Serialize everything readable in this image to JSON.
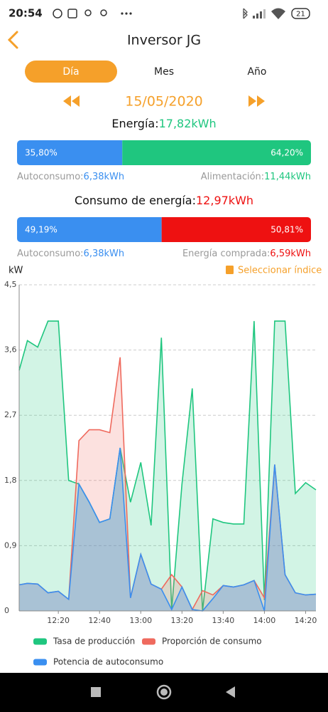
{
  "status_bar": {
    "time": "20:54",
    "battery": "21"
  },
  "header": {
    "title": "Inversor JG"
  },
  "tabs": [
    "Día",
    "Mes",
    "Año"
  ],
  "date": "15/05/2020",
  "energy": {
    "label": "Energía:",
    "total": "17,82kWh",
    "bar": [
      {
        "value": 35.8,
        "label": "35,80%"
      },
      {
        "value": 64.2,
        "label": "64,20%"
      }
    ],
    "left": {
      "label": "Autoconsumo:",
      "value": "6,38kWh"
    },
    "right": {
      "label": "Alimentación:",
      "value": "11,44kWh"
    }
  },
  "consumption": {
    "label": "Consumo de energía:",
    "total": "12,97kWh",
    "bar": [
      {
        "value": 49.19,
        "label": "49,19%"
      },
      {
        "value": 50.81,
        "label": "50,81%"
      }
    ],
    "left": {
      "label": "Autoconsumo:",
      "value": "6,38kWh"
    },
    "right": {
      "label": "Energía comprada:",
      "value": "6,59kWh"
    }
  },
  "select_index": "Seleccionar índice",
  "chart_data": {
    "type": "area",
    "ylabel": "kW",
    "x": [
      "12:01",
      "12:05",
      "12:10",
      "12:15",
      "12:20",
      "12:25",
      "12:30",
      "12:35",
      "12:40",
      "12:45",
      "12:50",
      "12:55",
      "13:00",
      "13:05",
      "13:10",
      "13:15",
      "13:20",
      "13:25",
      "13:30",
      "13:35",
      "13:40",
      "13:45",
      "13:50",
      "13:55",
      "14:00",
      "14:05",
      "14:10",
      "14:15",
      "14:20",
      "14:25"
    ],
    "series": [
      {
        "name": "Tasa de producción",
        "color": "#1fc67f",
        "values": [
          3.32,
          3.73,
          3.64,
          4.0,
          4.0,
          1.8,
          1.75,
          1.5,
          1.22,
          1.27,
          2.25,
          1.5,
          2.05,
          1.18,
          3.77,
          0.02,
          1.75,
          3.07,
          0.0,
          1.27,
          1.22,
          1.2,
          1.2,
          4.0,
          0.15,
          4.0,
          4.0,
          1.62,
          1.77,
          1.67
        ]
      },
      {
        "name": "Proporción de consumo",
        "color": "#ef6a5e",
        "values": [
          0.36,
          0.38,
          0.37,
          0.25,
          0.27,
          0.16,
          2.35,
          2.5,
          2.5,
          2.46,
          3.5,
          0.18,
          0.78,
          0.37,
          0.3,
          0.5,
          0.33,
          0.02,
          0.28,
          0.22,
          0.35,
          0.33,
          0.36,
          0.42,
          0.18,
          2.02,
          0.5,
          0.25,
          0.22,
          0.23
        ]
      },
      {
        "name": "Potencia de autoconsumo",
        "color": "#3a8ff0",
        "values": [
          0.36,
          0.38,
          0.37,
          0.25,
          0.27,
          0.16,
          1.75,
          1.5,
          1.22,
          1.27,
          2.25,
          0.18,
          0.78,
          0.37,
          0.3,
          0.02,
          0.33,
          0.02,
          0.0,
          0.17,
          0.35,
          0.33,
          0.36,
          0.42,
          0.0,
          2.02,
          0.5,
          0.25,
          0.22,
          0.23
        ]
      }
    ],
    "xlim": [
      "12:01",
      "14:25"
    ],
    "xticks": [
      "12:20",
      "12:40",
      "13:00",
      "13:20",
      "13:40",
      "14:00",
      "14:20"
    ],
    "ylim": [
      0,
      4.5
    ],
    "yticks": [
      0,
      {
        "value": 0.9,
        "label": "0,9"
      },
      {
        "value": 1.8,
        "label": "1,8"
      },
      {
        "value": 2.7,
        "label": "2,7"
      },
      {
        "value": 3.6,
        "label": "3,6"
      },
      {
        "value": 4.5,
        "label": "4,5"
      }
    ],
    "grid": true
  }
}
